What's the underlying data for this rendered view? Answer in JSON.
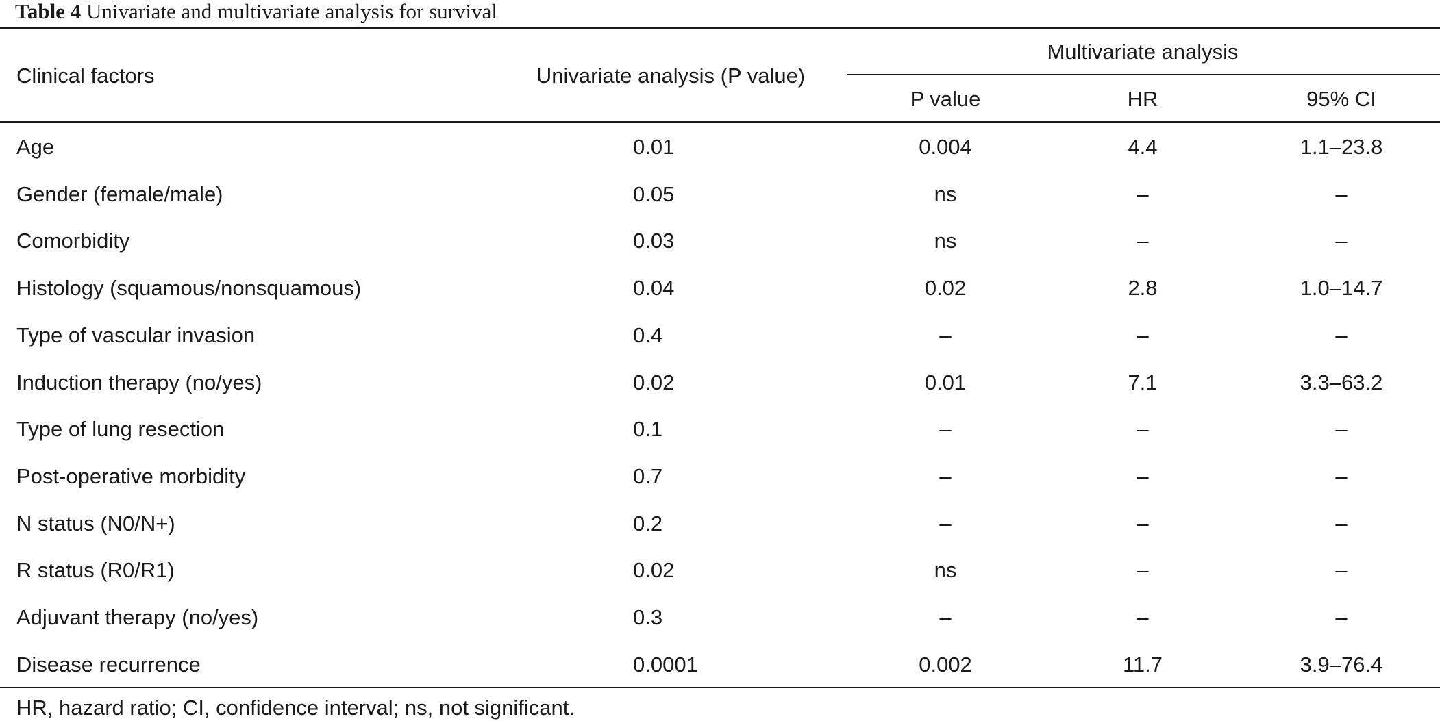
{
  "caption": {
    "label": "Table 4",
    "text": "Univariate and multivariate analysis for survival"
  },
  "header": {
    "clinical_factors": "Clinical factors",
    "univariate": "Univariate analysis (P value)",
    "multivariate": "Multivariate analysis",
    "p_value": "P value",
    "hr": "HR",
    "ci": "95% CI"
  },
  "rows": [
    {
      "factor": "Age",
      "univariate_p": "0.01",
      "multi_p": "0.004",
      "hr": "4.4",
      "ci": "1.1–23.8"
    },
    {
      "factor": "Gender (female/male)",
      "univariate_p": "0.05",
      "multi_p": "ns",
      "hr": "–",
      "ci": "–"
    },
    {
      "factor": "Comorbidity",
      "univariate_p": "0.03",
      "multi_p": "ns",
      "hr": "–",
      "ci": "–"
    },
    {
      "factor": "Histology (squamous/nonsquamous)",
      "univariate_p": "0.04",
      "multi_p": "0.02",
      "hr": "2.8",
      "ci": "1.0–14.7"
    },
    {
      "factor": "Type of vascular invasion",
      "univariate_p": "0.4",
      "multi_p": "–",
      "hr": "–",
      "ci": "–"
    },
    {
      "factor": "Induction therapy (no/yes)",
      "univariate_p": "0.02",
      "multi_p": "0.01",
      "hr": "7.1",
      "ci": "3.3–63.2"
    },
    {
      "factor": "Type of lung resection",
      "univariate_p": "0.1",
      "multi_p": "–",
      "hr": "–",
      "ci": "–"
    },
    {
      "factor": "Post-operative morbidity",
      "univariate_p": "0.7",
      "multi_p": "–",
      "hr": "–",
      "ci": "–"
    },
    {
      "factor": "N status (N0/N+)",
      "univariate_p": "0.2",
      "multi_p": "–",
      "hr": "–",
      "ci": "–"
    },
    {
      "factor": "R status (R0/R1)",
      "univariate_p": "0.02",
      "multi_p": "ns",
      "hr": "–",
      "ci": "–"
    },
    {
      "factor": "Adjuvant therapy (no/yes)",
      "univariate_p": "0.3",
      "multi_p": "–",
      "hr": "–",
      "ci": "–"
    },
    {
      "factor": "Disease recurrence",
      "univariate_p": "0.0001",
      "multi_p": "0.002",
      "hr": "11.7",
      "ci": "3.9–76.4"
    }
  ],
  "footnote": "HR, hazard ratio; CI, confidence interval; ns, not significant."
}
